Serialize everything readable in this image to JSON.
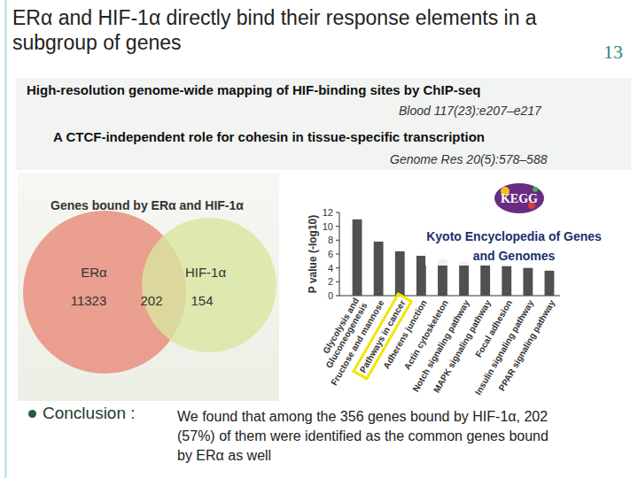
{
  "header": {
    "title": "ERα and HIF-1α directly bind their response elements in a subgroup of genes",
    "page_number": "13"
  },
  "references": [
    {
      "title": "High-resolution genome-wide mapping of HIF-binding sites by ChIP-seq",
      "citation": "Blood 117(23):e207–e217"
    },
    {
      "title": "A CTCF-independent role for cohesin in tissue-specific transcription",
      "citation": "Genome Res 20(5):578–588"
    }
  ],
  "kegg": {
    "logo": "KEGG",
    "caption": "Kyoto Encyclopedia of Genes and Genomes"
  },
  "conclusion": {
    "label": "Conclusion :",
    "text": "We found that among the 356 genes bound by HIF-1α, 202 (57%) of them were identified as the common genes bound by ERα as well"
  },
  "chart_data": [
    {
      "type": "venn",
      "title": "Genes bound by ERα and HIF-1α",
      "sets": [
        {
          "name": "ERα",
          "value": 11323,
          "color": "#e98a78"
        },
        {
          "name": "HIF-1α",
          "value": 154,
          "color": "#d8e6a0"
        }
      ],
      "intersection": 202
    },
    {
      "type": "bar",
      "y_label": "P value (-log10)",
      "categories": [
        "Glycolysis and Gluconeogenesis",
        "Fructose and mannose",
        "Pathways in cancer",
        "Adherens junction",
        "Actin cytoskeleton",
        "Notch signaling pathway",
        "MAPK signaling pathway",
        "Focal adhesion",
        "Insulin signaling pathway",
        "PPAR signaling pathway"
      ],
      "values": [
        11,
        7.8,
        6.4,
        5.75,
        5.25,
        4.9,
        4.5,
        4.25,
        4.0,
        3.6
      ],
      "color": "#505050",
      "ylim": [
        0,
        12
      ],
      "yticks": [
        0,
        2,
        4,
        6,
        8,
        10,
        12
      ],
      "grid": false
    }
  ]
}
